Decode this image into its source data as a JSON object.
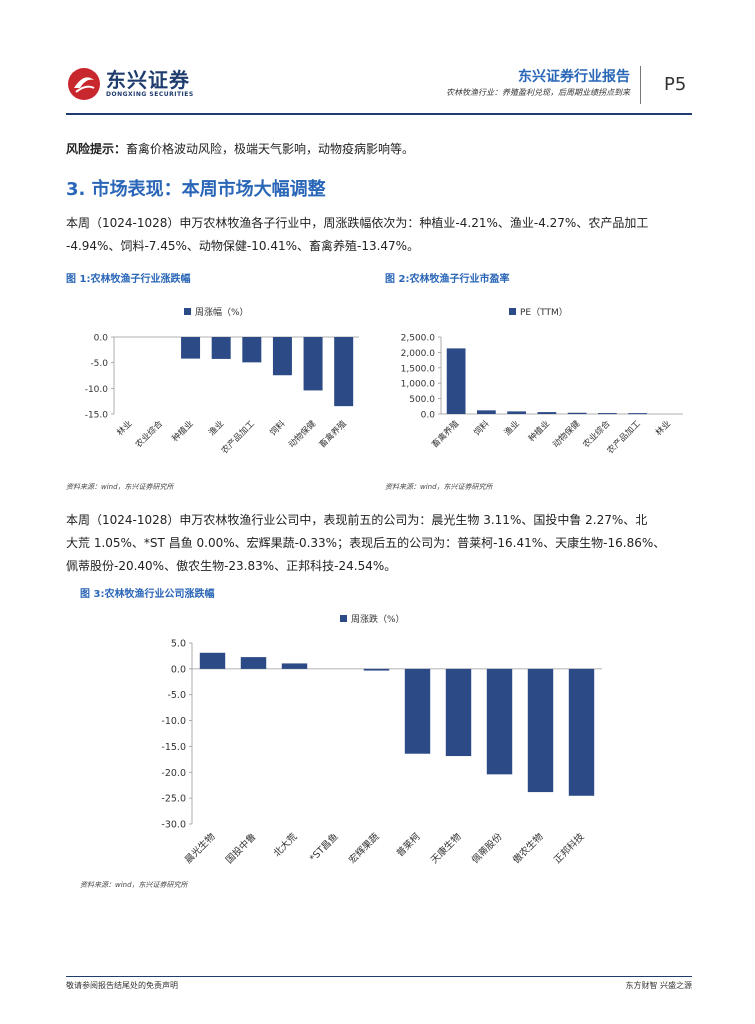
{
  "header": {
    "brand_name": "东兴证券",
    "brand_en": "DONGXING SECURITIES",
    "report_title": "东兴证券行业报告",
    "report_subtitle": "农林牧渔行业：养殖盈利兑现，后周期业绩拐点到来",
    "page_number": "P5"
  },
  "risk": {
    "label": "风险提示：",
    "text": "畜禽价格波动风险，极端天气影响，动物疫病影响等。"
  },
  "section_title": "3. 市场表现：本周市场大幅调整",
  "para1": {
    "line1": "本周（1024-1028）申万农林牧渔各子行业中，周涨跌幅依次为：种植业-4.21%、渔业-4.27%、农产品加工",
    "line2": "-4.94%、饲料-7.45%、动物保健-10.41%、畜禽养殖-13.47%。"
  },
  "para2": {
    "line1": "本周（1024-1028）申万农林牧渔行业公司中，表现前五的公司为：晨光生物 3.11%、国投中鲁 2.27%、北",
    "line2": "大荒 1.05%、*ST 昌鱼 0.00%、宏辉果蔬-0.33%；表现后五的公司为：普莱柯-16.41%、天康生物-16.86%、",
    "line3": "佩蒂股份-20.40%、傲农生物-23.83%、正邦科技-24.54%。"
  },
  "fig1": {
    "title": "图 1:农林牧渔子行业涨跌幅",
    "source": "资料来源：wind，东兴证券研究所"
  },
  "fig2": {
    "title": "图 2:农林牧渔子行业市盈率",
    "source": "资料来源：wind，东兴证券研究所"
  },
  "fig3": {
    "title": "图 3:农林牧渔行业公司涨跌幅",
    "source": "资料来源：wind，东兴证券研究所"
  },
  "footer": {
    "left": "敬请参阅报告结尾处的免责声明",
    "right": "东方财智  兴盛之源"
  },
  "colors": {
    "bar": "#2b4a86",
    "accent": "#2a66b7",
    "brand": "#1f3c6e",
    "logo_red": "#c8282d"
  },
  "chart_data": [
    {
      "type": "bar",
      "legend": "周涨幅（%）",
      "categories": [
        "林业",
        "农业综合",
        "种植业",
        "渔业",
        "农产品加工",
        "饲料",
        "动物保健",
        "畜禽养殖"
      ],
      "values": [
        0,
        0,
        -4.21,
        -4.27,
        -4.94,
        -7.45,
        -10.41,
        -13.47
      ],
      "yticks": [
        "0.0",
        "-5.0",
        "-10.0",
        "-15.0"
      ],
      "ylim": [
        -15,
        0
      ]
    },
    {
      "type": "bar",
      "legend": "PE（TTM）",
      "categories": [
        "畜禽养殖",
        "饲料",
        "渔业",
        "种植业",
        "动物保健",
        "农业综合",
        "农产品加工",
        "林业"
      ],
      "values": [
        2130,
        118,
        85,
        62,
        40,
        30,
        28,
        0
      ],
      "yticks": [
        "2,500.0",
        "2,000.0",
        "1,500.0",
        "1,000.0",
        "500.0",
        "0.0"
      ],
      "ylim": [
        0,
        2500
      ]
    },
    {
      "type": "bar",
      "legend": "周涨跌（%）",
      "categories": [
        "晨光生物",
        "国投中鲁",
        "北大荒",
        "*ST昌鱼",
        "宏辉果蔬",
        "普莱柯",
        "天康生物",
        "佩蒂股份",
        "傲农生物",
        "正邦科技"
      ],
      "values": [
        3.11,
        2.27,
        1.05,
        0.0,
        -0.33,
        -16.41,
        -16.86,
        -20.4,
        -23.83,
        -24.54
      ],
      "yticks": [
        "5.0",
        "0.0",
        "-5.0",
        "-10.0",
        "-15.0",
        "-20.0",
        "-25.0",
        "-30.0"
      ],
      "ylim": [
        -30,
        5
      ]
    }
  ]
}
